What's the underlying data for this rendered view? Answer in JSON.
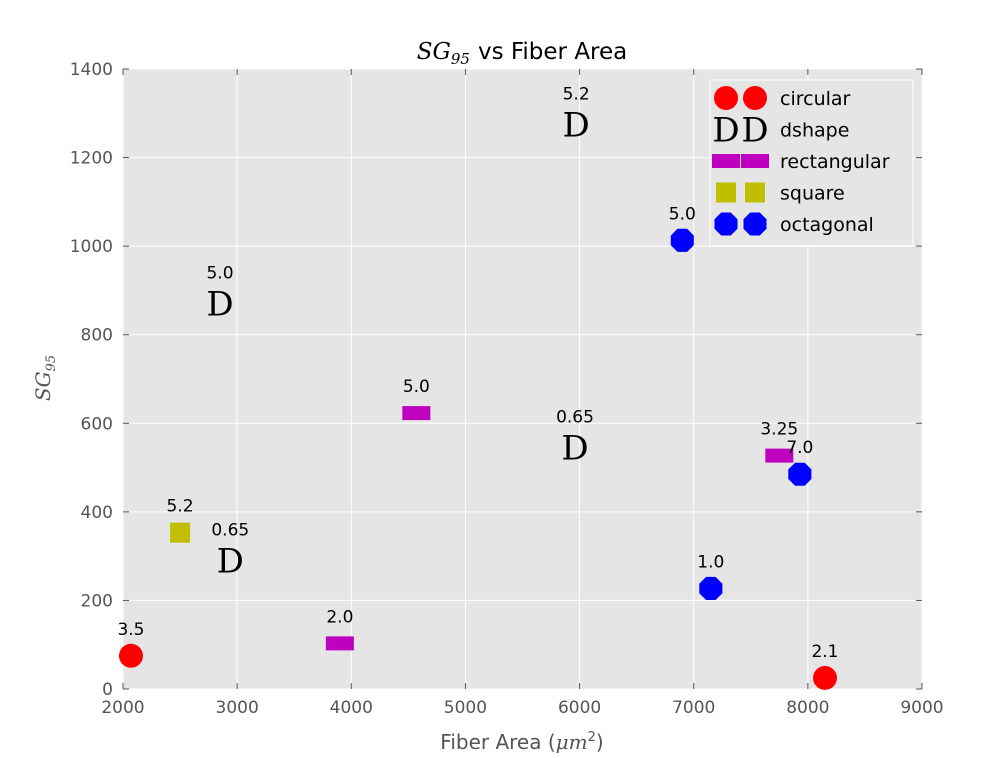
{
  "chart_data": {
    "type": "scatter",
    "title": {
      "math_base": "SG",
      "math_sub": "95",
      "rest": "vs Fiber Area"
    },
    "xlabel": {
      "text": "Fiber Area (",
      "math": "μm",
      "sup": "2",
      "close": ")"
    },
    "ylabel": {
      "math_base": "SG",
      "math_sub": "95"
    },
    "xlim": [
      2000,
      9000
    ],
    "ylim": [
      0,
      1400
    ],
    "xticks": [
      2000,
      3000,
      4000,
      5000,
      6000,
      7000,
      8000,
      9000
    ],
    "yticks": [
      0,
      200,
      400,
      600,
      800,
      1000,
      1200,
      1400
    ],
    "grid": true,
    "legend_position": "top-right",
    "series": [
      {
        "name": "circular",
        "marker": "circle",
        "color": "#ff0000",
        "points": [
          {
            "x": 2070,
            "y": 75,
            "label": "3.5"
          },
          {
            "x": 8150,
            "y": 25,
            "label": "2.1"
          }
        ]
      },
      {
        "name": "dshape",
        "marker": "D",
        "color": "#000000",
        "points": [
          {
            "x": 2850,
            "y": 870,
            "label": "5.0"
          },
          {
            "x": 5970,
            "y": 1275,
            "label": "5.2"
          },
          {
            "x": 5960,
            "y": 545,
            "label": "0.65"
          },
          {
            "x": 2940,
            "y": 290,
            "label": "0.65"
          }
        ]
      },
      {
        "name": "rectangular",
        "marker": "rect",
        "color": "#bf00bf",
        "points": [
          {
            "x": 4570,
            "y": 623,
            "label": "5.0"
          },
          {
            "x": 3900,
            "y": 103,
            "label": "2.0"
          },
          {
            "x": 7750,
            "y": 527,
            "label": "3.25"
          }
        ]
      },
      {
        "name": "square",
        "marker": "square",
        "color": "#bfbf00",
        "points": [
          {
            "x": 2500,
            "y": 353,
            "label": "5.2"
          }
        ]
      },
      {
        "name": "octagonal",
        "marker": "octagon",
        "color": "#0000ff",
        "points": [
          {
            "x": 6900,
            "y": 1013,
            "label": "5.0"
          },
          {
            "x": 7150,
            "y": 227,
            "label": "1.0"
          },
          {
            "x": 7930,
            "y": 485,
            "label": "7.0"
          }
        ]
      }
    ]
  }
}
